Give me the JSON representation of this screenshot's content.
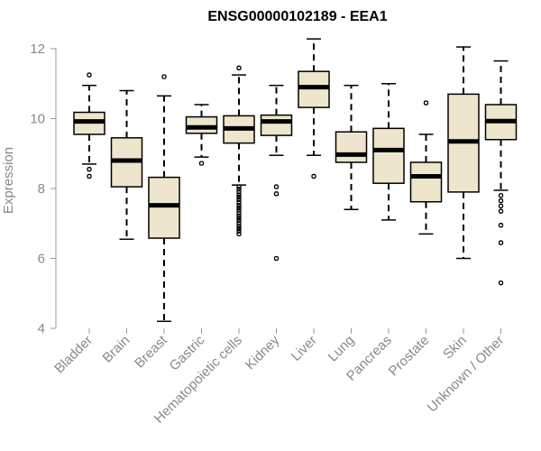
{
  "chart_data": {
    "type": "boxplot",
    "title": "ENSG00000102189 - EEA1",
    "xlabel": "",
    "ylabel": "Expression",
    "ylim": [
      4,
      12.3
    ],
    "yticks": [
      4,
      6,
      8,
      10,
      12
    ],
    "box_fill": "#ede6cc",
    "categories": [
      "Bladder",
      "Brain",
      "Breast",
      "Gastric",
      "Hematopoietic cells",
      "Kidney",
      "Liver",
      "Lung",
      "Pancreas",
      "Prostate",
      "Skin",
      "Unknown / Other"
    ],
    "series": [
      {
        "name": "Bladder",
        "whisker_low": 8.7,
        "q1": 9.55,
        "median": 9.92,
        "q3": 10.18,
        "whisker_high": 10.95,
        "outliers": [
          8.35,
          8.55,
          11.25
        ]
      },
      {
        "name": "Brain",
        "whisker_low": 6.55,
        "q1": 8.05,
        "median": 8.8,
        "q3": 9.45,
        "whisker_high": 10.8,
        "outliers": []
      },
      {
        "name": "Breast",
        "whisker_low": 4.2,
        "q1": 6.58,
        "median": 7.52,
        "q3": 8.32,
        "whisker_high": 10.65,
        "outliers": [
          11.2
        ]
      },
      {
        "name": "Gastric",
        "whisker_low": 8.9,
        "q1": 9.58,
        "median": 9.75,
        "q3": 10.05,
        "whisker_high": 10.4,
        "outliers": [
          8.72
        ]
      },
      {
        "name": "Hematopoietic cells",
        "whisker_low": 8.1,
        "q1": 9.3,
        "median": 9.72,
        "q3": 10.08,
        "whisker_high": 11.25,
        "outliers": [
          6.7,
          6.78,
          6.85,
          6.92,
          7.0,
          7.08,
          7.15,
          7.22,
          7.3,
          7.38,
          7.45,
          7.52,
          7.6,
          7.68,
          7.75,
          7.82,
          7.9,
          7.98,
          8.05,
          11.45
        ]
      },
      {
        "name": "Kidney",
        "whisker_low": 8.95,
        "q1": 9.52,
        "median": 9.92,
        "q3": 10.1,
        "whisker_high": 10.95,
        "outliers": [
          6.0,
          7.85,
          8.05
        ]
      },
      {
        "name": "Liver",
        "whisker_low": 8.95,
        "q1": 10.32,
        "median": 10.9,
        "q3": 11.35,
        "whisker_high": 12.28,
        "outliers": [
          8.35
        ]
      },
      {
        "name": "Lung",
        "whisker_low": 7.4,
        "q1": 8.75,
        "median": 8.97,
        "q3": 9.62,
        "whisker_high": 10.95,
        "outliers": []
      },
      {
        "name": "Pancreas",
        "whisker_low": 7.1,
        "q1": 8.15,
        "median": 9.1,
        "q3": 9.72,
        "whisker_high": 11.0,
        "outliers": []
      },
      {
        "name": "Prostate",
        "whisker_low": 6.7,
        "q1": 7.62,
        "median": 8.35,
        "q3": 8.75,
        "whisker_high": 9.55,
        "outliers": [
          10.45
        ]
      },
      {
        "name": "Skin",
        "whisker_low": 6.0,
        "q1": 7.9,
        "median": 9.35,
        "q3": 10.7,
        "whisker_high": 12.05,
        "outliers": []
      },
      {
        "name": "Unknown / Other",
        "whisker_low": 7.95,
        "q1": 9.4,
        "median": 9.93,
        "q3": 10.4,
        "whisker_high": 11.65,
        "outliers": [
          5.3,
          6.45,
          6.95,
          7.35,
          7.5,
          7.65,
          7.8
        ]
      }
    ]
  }
}
